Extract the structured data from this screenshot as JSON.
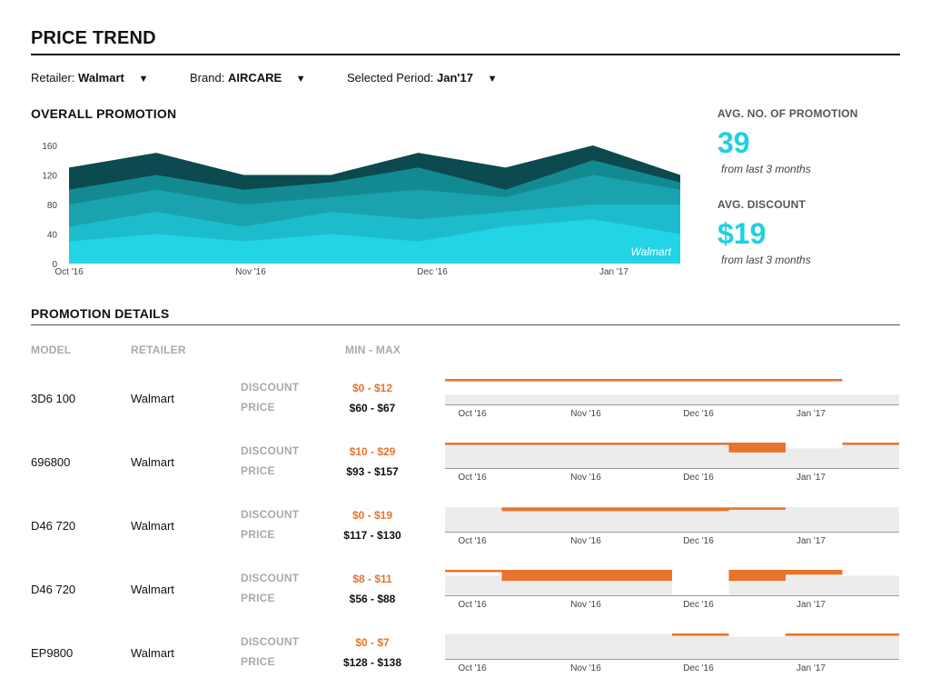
{
  "header": {
    "title": "PRICE TREND"
  },
  "filters": {
    "retailer": {
      "label": "Retailer:",
      "value": "Walmart"
    },
    "brand": {
      "label": "Brand:",
      "value": "AIRCARE"
    },
    "period": {
      "label": "Selected Period:",
      "value": "Jan'17"
    },
    "caret": "▼"
  },
  "overall": {
    "title": "OVERALL PROMOTION"
  },
  "kpis": {
    "avg_promotion": {
      "label": "AVG. NO. OF PROMOTION",
      "value": "39",
      "note": "from last 3 months"
    },
    "avg_discount": {
      "label": "AVG. DISCOUNT",
      "value": "$19",
      "note": "from last 3 months"
    }
  },
  "colors": {
    "layers": [
      "#22d4e6",
      "#1dbccc",
      "#1aa3ae",
      "#138a92",
      "#0c4a4f"
    ],
    "accent": "#1fd0e3",
    "discount": "#e8732a",
    "band": "#ececec"
  },
  "chart_data": {
    "type": "area",
    "x": [
      0,
      1,
      2,
      3,
      4,
      5,
      6,
      7
    ],
    "x_tick_labels": [
      "Oct '16",
      "Nov '16",
      "Dec '16",
      "Jan '17"
    ],
    "x_tick_positions": [
      0,
      2.08,
      4.16,
      6.24
    ],
    "ylim": [
      0,
      160
    ],
    "yticks": [
      0,
      40,
      80,
      120,
      160
    ],
    "annotation": "Walmart",
    "stacked_totals": [
      [
        30,
        40,
        30,
        40,
        30,
        50,
        60,
        40
      ],
      [
        50,
        70,
        50,
        70,
        60,
        70,
        80,
        80
      ],
      [
        80,
        100,
        80,
        90,
        100,
        90,
        120,
        100
      ],
      [
        100,
        120,
        100,
        110,
        130,
        100,
        140,
        110
      ],
      [
        130,
        150,
        120,
        120,
        150,
        130,
        160,
        120
      ]
    ]
  },
  "details": {
    "title": "PROMOTION DETAILS",
    "headers": {
      "model": "MODEL",
      "retailer": "RETAILER",
      "minmax": "MIN - MAX"
    },
    "discount_label": "DISCOUNT",
    "price_label": "PRICE",
    "month_labels": [
      "Oct '16",
      "Nov '16",
      "Dec '16",
      "Jan '17"
    ],
    "rows": [
      {
        "model": "3D6 100",
        "retailer": "Walmart",
        "discount": "$0 - $12",
        "price": "$60 - $67",
        "gray": [
          0.4,
          0.4,
          0.4,
          0.4,
          0.4,
          0.4,
          0.4,
          0.4
        ],
        "orange": [
          [
            1.0,
            1.0
          ],
          [
            1.0,
            1.0
          ],
          [
            1.0,
            1.0
          ],
          [
            1.0,
            1.0
          ],
          [
            1.0,
            1.0
          ],
          [
            1.0,
            1.0
          ],
          [
            1.0,
            1.0
          ],
          null
        ]
      },
      {
        "model": "696800",
        "retailer": "Walmart",
        "discount": "$10 - $29",
        "price": "$93 - $157",
        "gray": [
          1.0,
          1.0,
          1.0,
          1.0,
          1.0,
          1.0,
          0.8,
          1.0
        ],
        "orange": [
          [
            1.0,
            1.0
          ],
          [
            1.0,
            1.0
          ],
          [
            1.0,
            1.0
          ],
          [
            1.0,
            1.0
          ],
          [
            1.0,
            1.0
          ],
          [
            1.0,
            0.6
          ],
          null,
          [
            1.0,
            1.0
          ]
        ]
      },
      {
        "model": "D46 720",
        "retailer": "Walmart",
        "discount": "$0 - $19",
        "price": "$117 - $130",
        "gray": [
          1.0,
          1.0,
          1.0,
          1.0,
          1.0,
          1.0,
          1.0,
          1.0
        ],
        "orange": [
          null,
          [
            0.95,
            0.8
          ],
          [
            0.95,
            0.8
          ],
          [
            0.95,
            0.8
          ],
          [
            0.95,
            0.8
          ],
          [
            0.95,
            1.0
          ],
          null,
          null
        ]
      },
      {
        "model": "D46 720",
        "retailer": "Walmart",
        "discount": "$8 - $11",
        "price": "$56 - $88",
        "gray": [
          0.8,
          0.8,
          0.8,
          0.8,
          0.0,
          0.8,
          0.8,
          0.8
        ],
        "orange": [
          [
            1.0,
            1.0
          ],
          [
            1.0,
            0.55
          ],
          [
            1.0,
            0.55
          ],
          [
            1.0,
            0.55
          ],
          null,
          [
            1.0,
            0.55
          ],
          [
            1.0,
            0.8
          ],
          null
        ]
      },
      {
        "model": "EP9800",
        "retailer": "Walmart",
        "discount": "$0 - $7",
        "price": "$128 - $138",
        "gray": [
          1.0,
          1.0,
          1.0,
          1.0,
          1.0,
          0.9,
          1.0,
          1.0
        ],
        "orange": [
          null,
          null,
          null,
          null,
          [
            1.0,
            1.0
          ],
          null,
          [
            1.0,
            1.0
          ],
          [
            1.0,
            1.0
          ]
        ]
      }
    ]
  }
}
